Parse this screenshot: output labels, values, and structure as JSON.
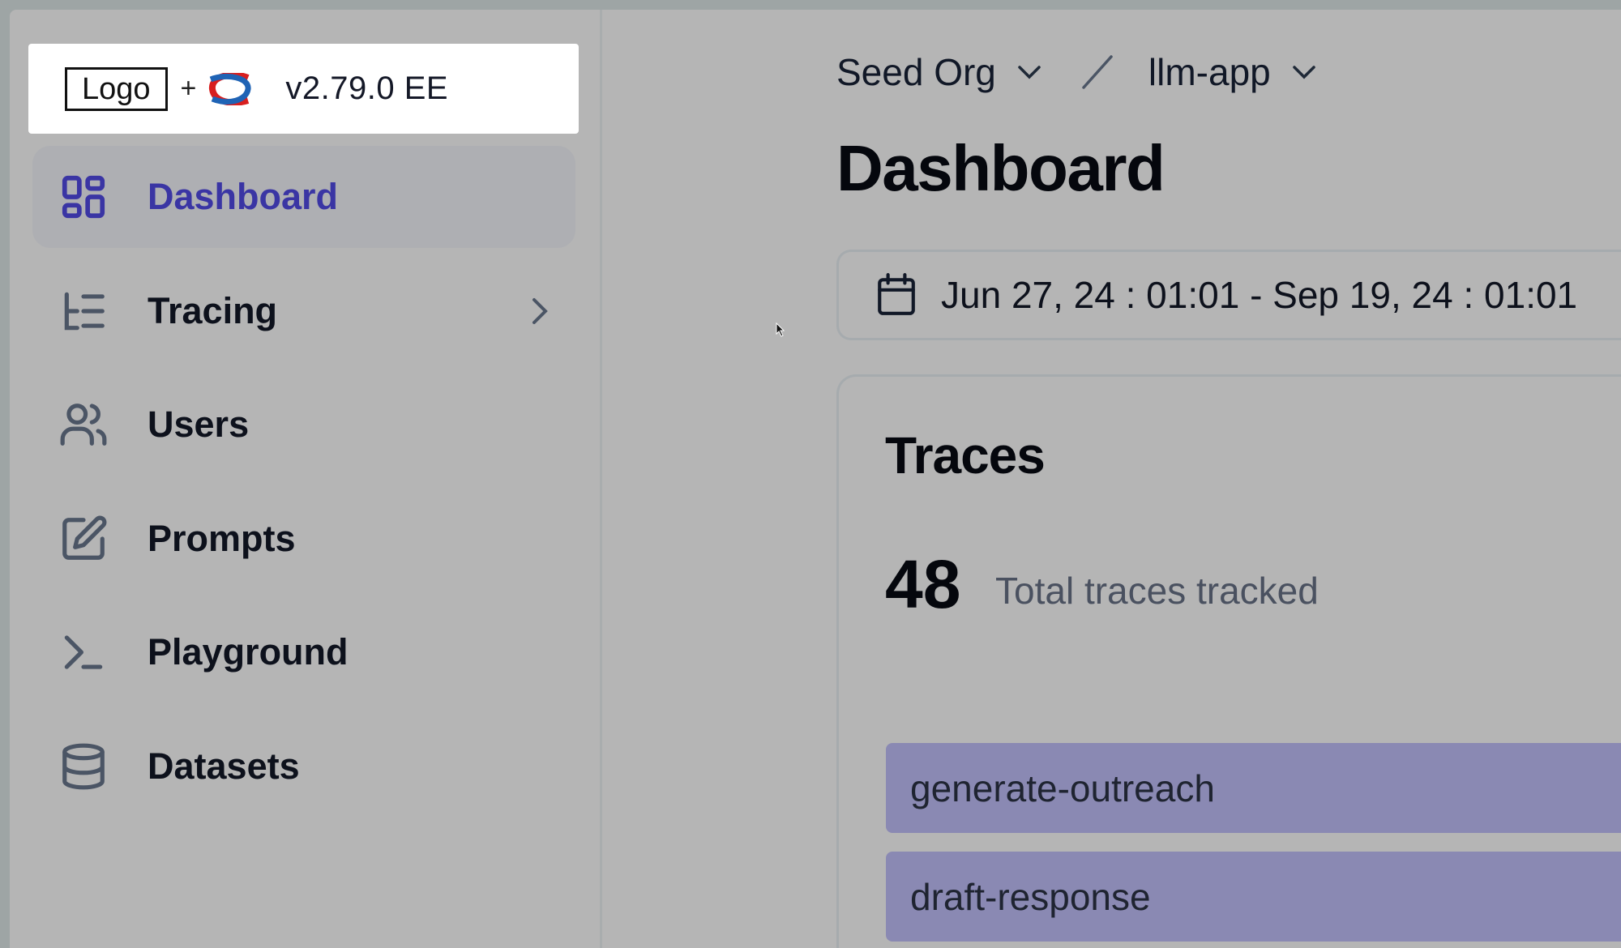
{
  "sidebar": {
    "logo_text": "Logo",
    "logo_plus": "+",
    "version": "v2.79.0 EE",
    "items": [
      {
        "label": "Dashboard",
        "icon": "layout-grid-icon",
        "active": true
      },
      {
        "label": "Tracing",
        "icon": "list-tree-icon",
        "has_submenu": true
      },
      {
        "label": "Users",
        "icon": "users-icon"
      },
      {
        "label": "Prompts",
        "icon": "pencil-square-icon"
      },
      {
        "label": "Playground",
        "icon": "terminal-icon"
      },
      {
        "label": "Datasets",
        "icon": "database-icon"
      }
    ]
  },
  "breadcrumb": {
    "org": "Seed Org",
    "separator": "/",
    "project": "llm-app"
  },
  "page_title": "Dashboard",
  "date_range": "Jun 27, 24 : 01:01 - Sep 19, 24 : 01:01",
  "traces_card": {
    "title": "Traces",
    "count": "48",
    "count_label": "Total traces tracked",
    "rows": [
      "generate-outreach",
      "draft-response"
    ]
  },
  "colors": {
    "accent": "#3a35a4",
    "bar": "#8a89b3",
    "background": "#b5b5b5"
  }
}
